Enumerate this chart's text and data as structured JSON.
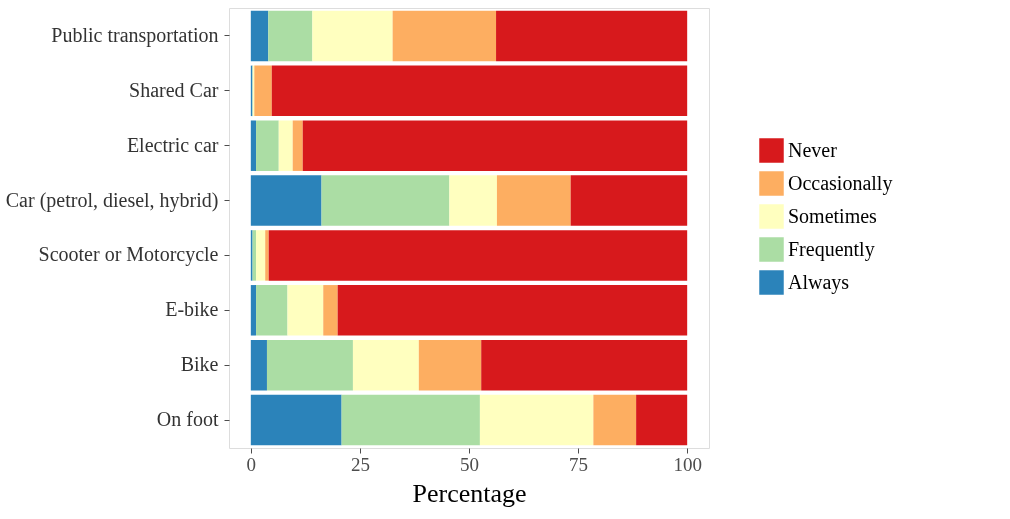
{
  "chart_data": {
    "type": "bar",
    "orientation": "horizontal",
    "stacked": true,
    "xlabel": "Percentage",
    "categories": [
      "Public transportation",
      "Shared Car",
      "Electric car",
      "Car (petrol, diesel, hybrid)",
      "Scooter or Motorcycle",
      "E-bike",
      "Bike",
      "On foot"
    ],
    "series": [
      {
        "name": "Always",
        "color": "#2b83ba",
        "values": [
          4.0,
          0.4,
          1.2,
          16.2,
          0.4,
          1.2,
          3.7,
          20.8
        ]
      },
      {
        "name": "Frequently",
        "color": "#abdda4",
        "values": [
          10.1,
          0.0,
          5.2,
          29.3,
          0.8,
          7.2,
          19.7,
          31.7
        ]
      },
      {
        "name": "Sometimes",
        "color": "#ffffbf",
        "values": [
          18.4,
          0.4,
          3.2,
          10.9,
          2.1,
          8.2,
          15.1,
          26.0
        ]
      },
      {
        "name": "Occasionally",
        "color": "#fdae61",
        "values": [
          23.7,
          4.0,
          2.3,
          16.9,
          0.8,
          3.3,
          14.3,
          9.8
        ]
      },
      {
        "name": "Never",
        "color": "#d7191c",
        "values": [
          43.8,
          95.2,
          88.1,
          26.7,
          95.9,
          80.1,
          47.2,
          11.7
        ]
      }
    ],
    "xlim": [
      -5,
      105
    ],
    "xticks": [
      0,
      25,
      50,
      75,
      100
    ],
    "grid": false,
    "legend": "right"
  }
}
